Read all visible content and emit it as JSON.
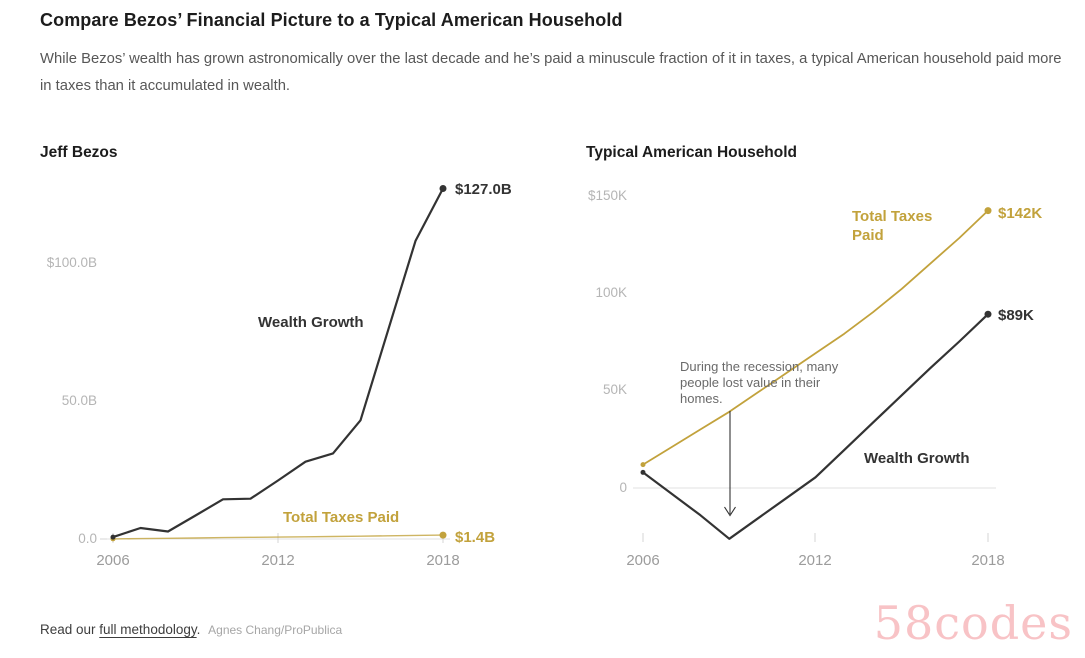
{
  "header": {
    "title": "Compare Bezos’ Financial Picture to a Typical American Household",
    "subtitle": "While Bezos’ wealth has grown astronomically over the last decade and he’s paid a minuscule fraction of it in taxes, a typical American household paid more in taxes than it accumulated in wealth."
  },
  "colors": {
    "gold": "#c2a23c",
    "dark": "#333333",
    "axis_label": "#b5b5b5",
    "x_label": "#9c9c9c",
    "tick": "#d4d4d4",
    "grid": "#e2e2e2",
    "annotation": "#6a6a6a",
    "title": "#1c1c1c",
    "subtitle": "#575757",
    "footer_text": "#3d3d3d",
    "credit": "#a6a6a6",
    "watermark_pink": "#f8c3c6"
  },
  "chart_data": [
    {
      "type": "line",
      "title": "Jeff Bezos",
      "unit": "billions of dollars",
      "x": [
        2006,
        2007,
        2008,
        2009,
        2010,
        2011,
        2012,
        2013,
        2014,
        2015,
        2016,
        2017,
        2018
      ],
      "xticks": [
        {
          "label": "2006"
        },
        {
          "label": "2012"
        },
        {
          "label": "2018"
        }
      ],
      "yticks": [
        {
          "label": "$100.0B",
          "value": 100
        },
        {
          "label": "50.0B",
          "value": 50
        },
        {
          "label": "0.0",
          "value": 0
        }
      ],
      "ylim": [
        0,
        130
      ],
      "legend_position": "inline-labels",
      "grid": "zero-line-only",
      "series": [
        {
          "name": "Total Taxes Paid",
          "color": "gold",
          "end_label": "$1.4B",
          "values": [
            0.05,
            0.15,
            0.25,
            0.35,
            0.5,
            0.6,
            0.7,
            0.8,
            0.9,
            1.0,
            1.15,
            1.3,
            1.4
          ]
        },
        {
          "name": "Wealth Growth",
          "color": "dark",
          "end_label": "$127.0B",
          "values": [
            0.7,
            4.0,
            2.7,
            8.5,
            14.4,
            14.6,
            21.2,
            28.0,
            31.0,
            43.0,
            75.5,
            108.0,
            127.0
          ]
        }
      ]
    },
    {
      "type": "line",
      "title": "Typical American Household",
      "unit": "thousands of dollars",
      "x": [
        2006,
        2007,
        2008,
        2009,
        2010,
        2011,
        2012,
        2013,
        2014,
        2015,
        2016,
        2017,
        2018
      ],
      "xticks": [
        {
          "label": "2006"
        },
        {
          "label": "2012"
        },
        {
          "label": "2018"
        }
      ],
      "yticks": [
        {
          "label": "$150K",
          "value": 150
        },
        {
          "label": "100K",
          "value": 100
        },
        {
          "label": "50K",
          "value": 50
        },
        {
          "label": "0",
          "value": 0
        }
      ],
      "ylim": [
        -30,
        150
      ],
      "legend_position": "inline-labels",
      "grid": "zero-line-only",
      "series": [
        {
          "name": "Total Taxes Paid",
          "label_lines": [
            "Total Taxes",
            "Paid"
          ],
          "color": "gold",
          "end_label": "$142K",
          "values": [
            12,
            21,
            30,
            39,
            49,
            59,
            69,
            79,
            90,
            102,
            115,
            128,
            142
          ]
        },
        {
          "name": "Wealth Growth",
          "color": "dark",
          "end_label": "$89K",
          "values": [
            8,
            -3,
            -14,
            -26,
            -15.5,
            -5,
            5.5,
            19.5,
            33.5,
            47.5,
            61.5,
            75,
            89
          ]
        }
      ],
      "annotation": {
        "lines": [
          "During the recession, many",
          "people lost value in their",
          "homes."
        ],
        "arrow_points_to_year": 2009
      }
    }
  ],
  "footer": {
    "prefix": "Read our ",
    "link": "full methodology",
    "suffix": ".",
    "credit": "Agnes Chang/ProPublica"
  },
  "watermark": "58codes"
}
